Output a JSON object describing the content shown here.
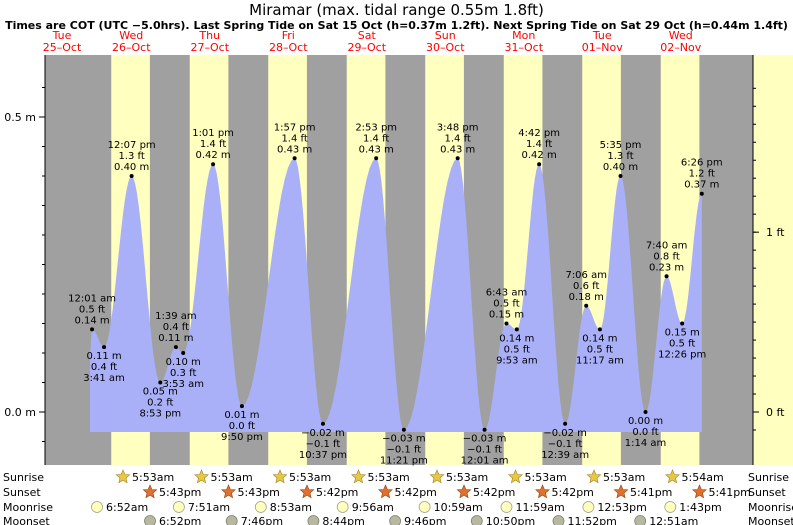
{
  "title": "Miramar (max. tidal range 0.55m 1.8ft)",
  "subtitle": "Times are COT (UTC −5.0hrs). Last Spring Tide on Sat 15 Oct (h=0.37m 1.2ft). Next Spring Tide on Sat 29 Oct (h=0.44m 1.4ft)",
  "chart_data": {
    "type": "area",
    "title": "Miramar (max. tidal range 0.55m 1.8ft)",
    "left_axis": {
      "unit": "m",
      "ticks": [
        "0.0 m",
        "0.5 m"
      ],
      "tick_values": [
        0.0,
        0.5
      ]
    },
    "right_axis": {
      "unit": "ft",
      "ticks": [
        "0 ft",
        "1 ft"
      ],
      "tick_values": [
        0,
        1
      ]
    },
    "ylim_m": [
      -0.05,
      0.6
    ],
    "colors": {
      "water": "#aab0f8",
      "day": "#ffffc0",
      "night": "#a0a0a0",
      "day_label": "#ff0000",
      "sunrise": "#e8c840",
      "sunset": "#e07030",
      "moonrise": "#ffffc0",
      "moonset": "#b8b8a0"
    },
    "days": [
      {
        "dow": "Tue",
        "date": "25–Oct"
      },
      {
        "dow": "Wed",
        "date": "26–Oct"
      },
      {
        "dow": "Thu",
        "date": "27–Oct"
      },
      {
        "dow": "Fri",
        "date": "28–Oct"
      },
      {
        "dow": "Sat",
        "date": "29–Oct"
      },
      {
        "dow": "Sun",
        "date": "30–Oct"
      },
      {
        "dow": "Mon",
        "date": "31–Oct"
      },
      {
        "dow": "Tue",
        "date": "01–Nov"
      },
      {
        "dow": "Wed",
        "date": "02–Nov"
      }
    ],
    "tides": [
      {
        "time": "12:01 am",
        "height_m": 0.14,
        "height_ft": "0.5 ft",
        "m_label": "0.14 m",
        "type": "high"
      },
      {
        "time": "3:41 am",
        "height_m": 0.11,
        "height_ft": "0.4 ft",
        "m_label": "0.11 m",
        "type": "low"
      },
      {
        "time": "12:07 pm",
        "height_m": 0.4,
        "height_ft": "1.3 ft",
        "m_label": "0.40 m",
        "type": "high"
      },
      {
        "time": "8:53 pm",
        "height_m": 0.05,
        "height_ft": "0.2 ft",
        "m_label": "0.05 m",
        "type": "low"
      },
      {
        "time": "1:39 am",
        "height_m": 0.11,
        "height_ft": "0.4 ft",
        "m_label": "0.11 m",
        "type": "high"
      },
      {
        "time": "3:53 am",
        "height_m": 0.1,
        "height_ft": "0.3 ft",
        "m_label": "0.10 m",
        "type": "low"
      },
      {
        "time": "1:01 pm",
        "height_m": 0.42,
        "height_ft": "1.4 ft",
        "m_label": "0.42 m",
        "type": "high"
      },
      {
        "time": "9:50 pm",
        "height_m": 0.01,
        "height_ft": "0.0 ft",
        "m_label": "0.01 m",
        "type": "low"
      },
      {
        "time": "1:57 pm",
        "height_m": 0.43,
        "height_ft": "1.4 ft",
        "m_label": "0.43 m",
        "type": "high"
      },
      {
        "time": "10:37 pm",
        "height_m": -0.02,
        "height_ft": "−0.1 ft",
        "m_label": "−0.02 m",
        "type": "low"
      },
      {
        "time": "2:53 pm",
        "height_m": 0.43,
        "height_ft": "1.4 ft",
        "m_label": "0.43 m",
        "type": "high"
      },
      {
        "time": "11:21 pm",
        "height_m": -0.03,
        "height_ft": "−0.1 ft",
        "m_label": "−0.03 m",
        "type": "low"
      },
      {
        "time": "3:48 pm",
        "height_m": 0.43,
        "height_ft": "1.4 ft",
        "m_label": "0.43 m",
        "type": "high"
      },
      {
        "time": "12:01 am",
        "height_m": -0.03,
        "height_ft": "−0.1 ft",
        "m_label": "−0.03 m",
        "type": "low"
      },
      {
        "time": "6:43 am",
        "height_m": 0.15,
        "height_ft": "0.5 ft",
        "m_label": "0.15 m",
        "type": "high"
      },
      {
        "time": "9:53 am",
        "height_m": 0.14,
        "height_ft": "0.5 ft",
        "m_label": "0.14 m",
        "type": "low"
      },
      {
        "time": "4:42 pm",
        "height_m": 0.42,
        "height_ft": "1.4 ft",
        "m_label": "0.42 m",
        "type": "high"
      },
      {
        "time": "12:39 am",
        "height_m": -0.02,
        "height_ft": "−0.1 ft",
        "m_label": "−0.02 m",
        "type": "low"
      },
      {
        "time": "7:06 am",
        "height_m": 0.18,
        "height_ft": "0.6 ft",
        "m_label": "0.18 m",
        "type": "high"
      },
      {
        "time": "11:17 am",
        "height_m": 0.14,
        "height_ft": "0.5 ft",
        "m_label": "0.14 m",
        "type": "low"
      },
      {
        "time": "5:35 pm",
        "height_m": 0.4,
        "height_ft": "1.3 ft",
        "m_label": "0.40 m",
        "type": "high"
      },
      {
        "time": "1:14 am",
        "height_m": 0.0,
        "height_ft": "0.0 ft",
        "m_label": "0.00 m",
        "type": "low"
      },
      {
        "time": "7:40 am",
        "height_m": 0.23,
        "height_ft": "0.8 ft",
        "m_label": "0.23 m",
        "type": "high"
      },
      {
        "time": "12:26 pm",
        "height_m": 0.15,
        "height_ft": "0.5 ft",
        "m_label": "0.15 m",
        "type": "low"
      },
      {
        "time": "6:26 pm",
        "height_m": 0.37,
        "height_ft": "1.2 ft",
        "m_label": "0.37 m",
        "type": "high"
      }
    ],
    "legend_rows": [
      "Sunrise",
      "Sunset",
      "Moonrise",
      "Moonset"
    ],
    "sunrise": [
      "5:53am",
      "5:53am",
      "5:53am",
      "5:53am",
      "5:53am",
      "5:53am",
      "5:53am",
      "5:54am"
    ],
    "sunset": [
      "5:43pm",
      "5:43pm",
      "5:42pm",
      "5:42pm",
      "5:42pm",
      "5:42pm",
      "5:41pm",
      "5:41pm"
    ],
    "moonrise": [
      "6:52am",
      "7:51am",
      "8:53am",
      "9:56am",
      "10:59am",
      "11:59am",
      "12:53pm",
      "1:43pm"
    ],
    "moonset": [
      "6:52pm",
      "7:46pm",
      "8:44pm",
      "9:46pm",
      "10:50pm",
      "11:52pm",
      "12:51am"
    ]
  }
}
